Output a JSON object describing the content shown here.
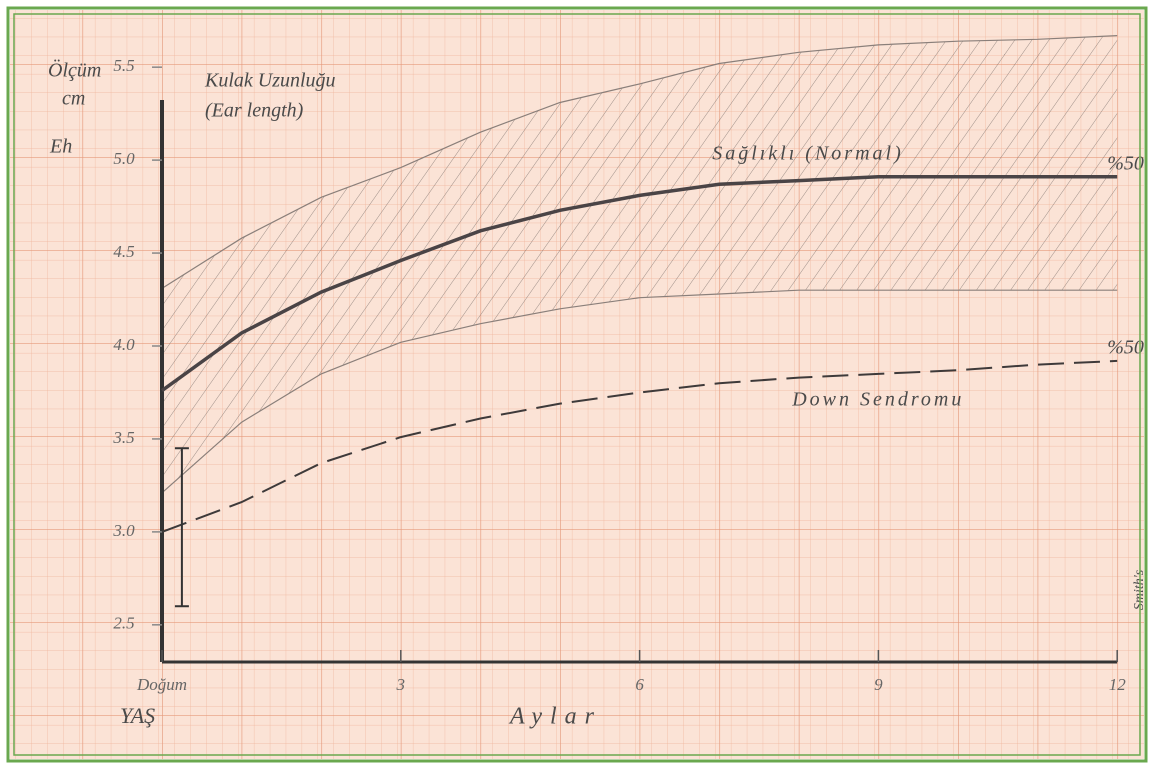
{
  "chart_data": {
    "type": "line",
    "title": "Kulak Uzunluğu",
    "subtitle": "(Ear length)",
    "y_label": "Ölçüm",
    "y_unit": "cm",
    "y_note": "Eh",
    "x_label": "Aylar",
    "x_note": "YAŞ",
    "source": "Smith's",
    "x": [
      0,
      1,
      2,
      3,
      4,
      5,
      6,
      7,
      8,
      9,
      10,
      11,
      12
    ],
    "xlim": [
      0,
      12.3
    ],
    "xticks": [
      {
        "value": 0,
        "label": "Doğum"
      },
      3,
      6,
      9,
      12
    ],
    "ylim": [
      2.3,
      5.7
    ],
    "yticks": [
      {
        "value": 2.5,
        "label": "2.5"
      },
      {
        "value": 3,
        "label": "3.0"
      },
      {
        "value": 3.5,
        "label": "3.5"
      },
      {
        "value": 4,
        "label": "4.0"
      },
      {
        "value": 4.5,
        "label": "4.5"
      },
      {
        "value": 5,
        "label": "5.0"
      },
      {
        "value": 5.5,
        "label": "5.5"
      }
    ],
    "grid": true,
    "band": {
      "color": "#8a7f7a",
      "upper": [
        4.31,
        4.58,
        4.8,
        4.96,
        5.15,
        5.31,
        5.41,
        5.52,
        5.58,
        5.62,
        5.64,
        5.65,
        5.67
      ],
      "lower": [
        3.21,
        3.59,
        3.85,
        4.02,
        4.12,
        4.2,
        4.26,
        4.28,
        4.3,
        4.3,
        4.3,
        4.3,
        4.3
      ]
    },
    "series": [
      {
        "name": "Sağlıklı (Normal)",
        "end_label": "%50",
        "color": "#4a4446",
        "dash": false,
        "values": [
          3.76,
          4.07,
          4.29,
          4.46,
          4.62,
          4.73,
          4.81,
          4.87,
          4.89,
          4.91,
          4.91,
          4.91,
          4.91
        ]
      },
      {
        "name": "Down Sendromu",
        "end_label": "%50",
        "color": "#3e3a3a",
        "dash": true,
        "values": [
          3.0,
          3.16,
          3.37,
          3.51,
          3.61,
          3.69,
          3.75,
          3.8,
          3.83,
          3.85,
          3.87,
          3.9,
          3.92
        ]
      }
    ],
    "error_bar": {
      "x": 0.25,
      "low": 2.6,
      "high": 3.45
    }
  }
}
